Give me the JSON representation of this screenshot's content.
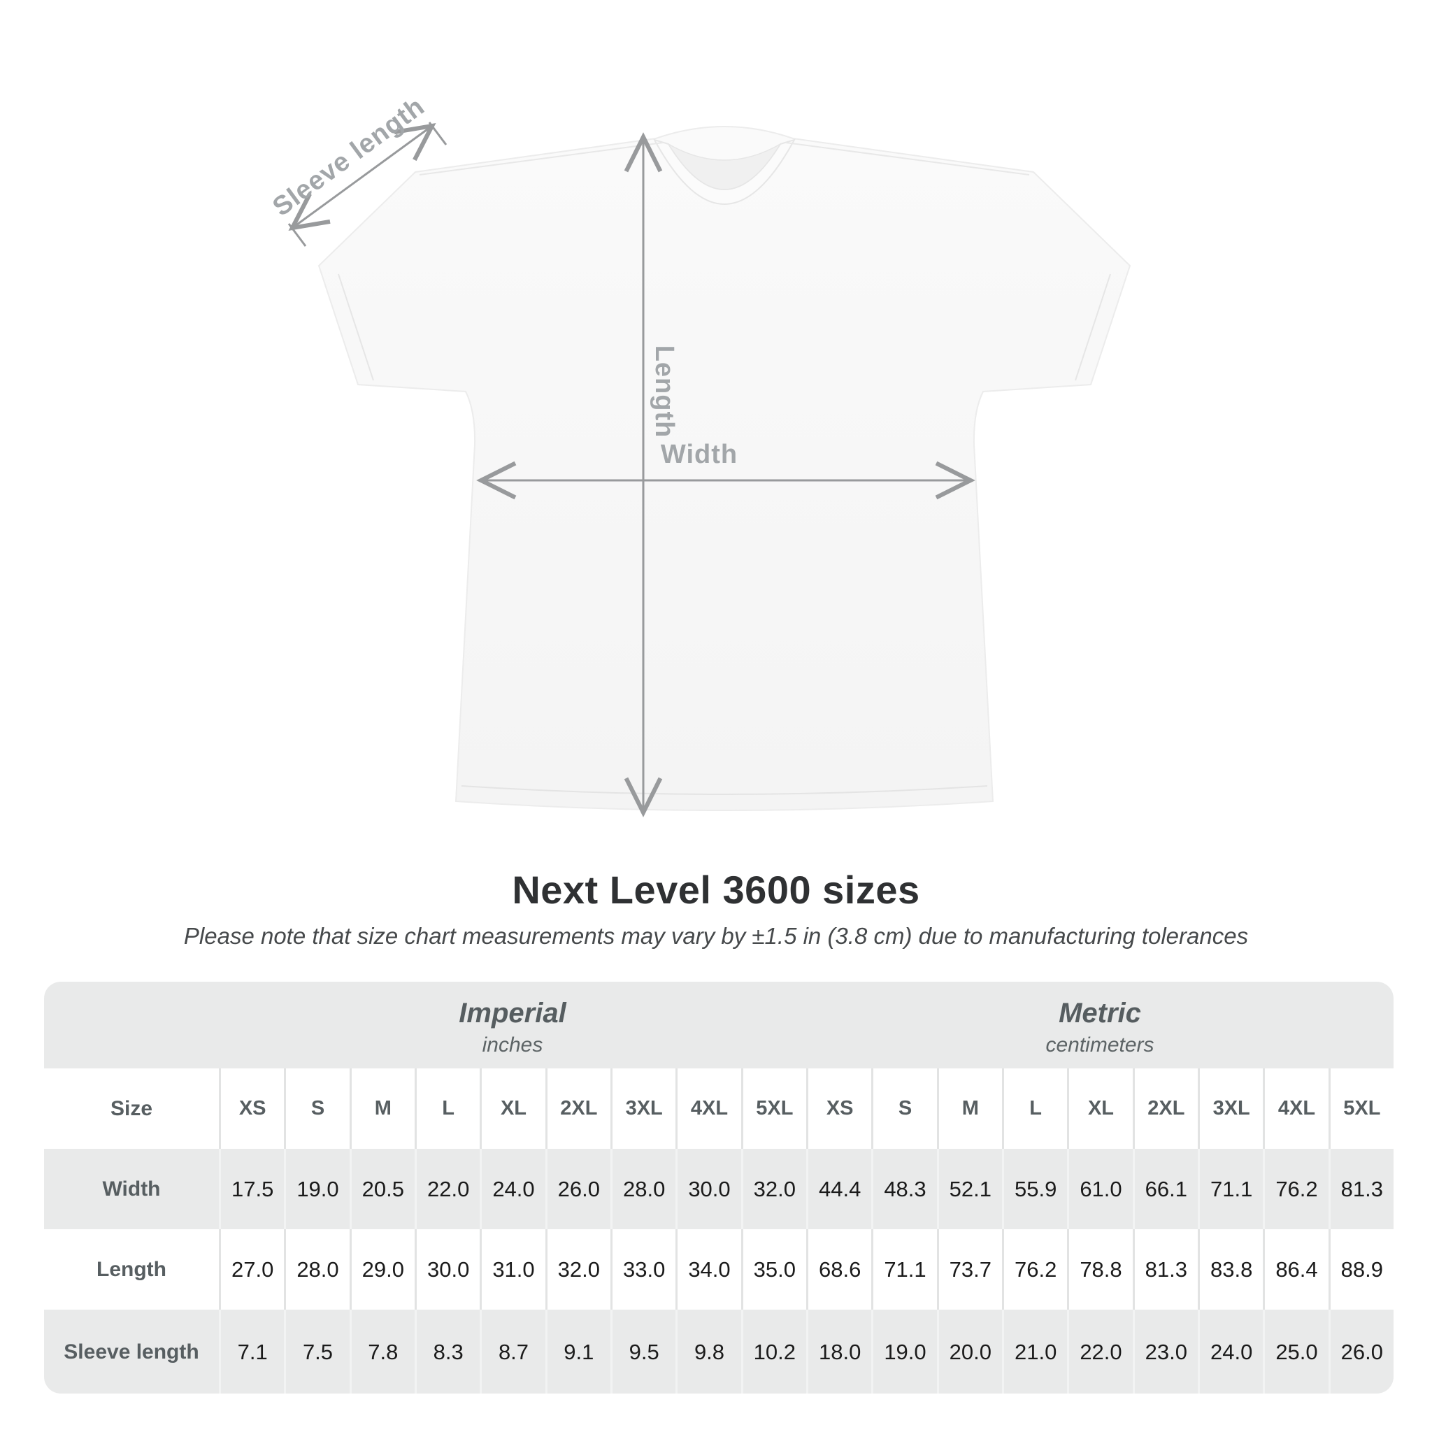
{
  "subtitle": "Please note that size chart measurements may vary by ±1.5 in (3.8 cm) due to manufacturing tolerances",
  "diagram": {
    "sleeve_label": "Sleeve length",
    "length_label": "Length",
    "width_label": "Width"
  },
  "colors": {
    "arrow_gray": "#989a9c",
    "diagram_label_gray": "#a2a6a9",
    "table_bg_gray": "#e9eaea",
    "row_white": "#ffffff",
    "header_text_gray": "#565d60",
    "value_text": "#1b1b1b",
    "title_text": "#2f3133",
    "shirt_fill": "#f7f7f7"
  },
  "chart_data": {
    "type": "table",
    "title": "Next Level 3600 sizes",
    "sections": [
      "Imperial",
      "Metric"
    ],
    "units": [
      "inches",
      "centimeters"
    ],
    "row_header": "Size",
    "sizes": [
      "XS",
      "S",
      "M",
      "L",
      "XL",
      "2XL",
      "3XL",
      "4XL",
      "5XL"
    ],
    "rows": [
      {
        "label": "Width",
        "imperial": [
          "17.5",
          "19.0",
          "20.5",
          "22.0",
          "24.0",
          "26.0",
          "28.0",
          "30.0",
          "32.0"
        ],
        "metric": [
          "44.4",
          "48.3",
          "52.1",
          "55.9",
          "61.0",
          "66.1",
          "71.1",
          "76.2",
          "81.3"
        ]
      },
      {
        "label": "Length",
        "imperial": [
          "27.0",
          "28.0",
          "29.0",
          "30.0",
          "31.0",
          "32.0",
          "33.0",
          "34.0",
          "35.0"
        ],
        "metric": [
          "68.6",
          "71.1",
          "73.7",
          "76.2",
          "78.8",
          "81.3",
          "83.8",
          "86.4",
          "88.9"
        ]
      },
      {
        "label": "Sleeve length",
        "imperial": [
          "7.1",
          "7.5",
          "7.8",
          "8.3",
          "8.7",
          "9.1",
          "9.5",
          "9.8",
          "10.2"
        ],
        "metric": [
          "18.0",
          "19.0",
          "20.0",
          "21.0",
          "22.0",
          "23.0",
          "24.0",
          "25.0",
          "26.0"
        ]
      }
    ]
  }
}
